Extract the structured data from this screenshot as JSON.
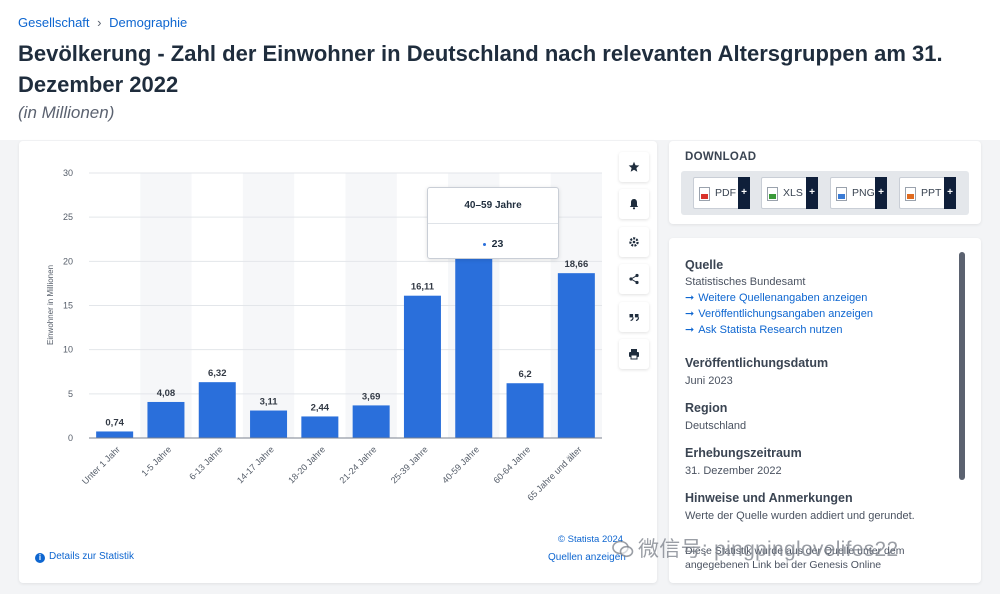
{
  "breadcrumb": {
    "item1": "Gesellschaft",
    "separator": "›",
    "item2": "Demographie"
  },
  "title": "Bevölkerung - Zahl der Einwohner in Deutschland nach relevanten Altersgruppen am 31. Dezember 2022",
  "subtitle": "(in Millionen)",
  "chart_data": {
    "type": "bar",
    "categories": [
      "Unter 1 Jahr",
      "1-5 Jahre",
      "6-13 Jahre",
      "14-17 Jahre",
      "18-20 Jahre",
      "21-24 Jahre",
      "25-39 Jahre",
      "40-59 Jahre",
      "60-64 Jahre",
      "65 Jahre und älter"
    ],
    "values": [
      0.74,
      4.08,
      6.32,
      3.11,
      2.44,
      3.69,
      16.11,
      23,
      6.2,
      18.66
    ],
    "value_labels": [
      "0,74",
      "4,08",
      "6,32",
      "3,11",
      "2,44",
      "3,69",
      "16,11",
      "",
      "6,2",
      "18,66"
    ],
    "ylabel": "Einwohner in Millionen",
    "ylim": [
      0,
      30
    ],
    "yticks": [
      "0",
      "5",
      "10",
      "15",
      "20",
      "25",
      "30"
    ],
    "bar_color": "#2a6fdb",
    "grid": true,
    "tooltip": {
      "title": "40–59 Jahre",
      "value": "23"
    }
  },
  "chart_footer": {
    "details_label": "Details zur Statistik",
    "copyright": "© Statista 2024",
    "sources_label": "Quellen anzeigen"
  },
  "tools": [
    "star-icon",
    "bell-icon",
    "gear-icon",
    "share-icon",
    "quote-icon",
    "print-icon"
  ],
  "download": {
    "title": "DOWNLOAD",
    "buttons": [
      {
        "label": "PDF",
        "color": "#d9322b"
      },
      {
        "label": "XLS",
        "color": "#3a9a3a"
      },
      {
        "label": "PNG",
        "color": "#3a7bd5"
      },
      {
        "label": "PPT",
        "color": "#e06b1f"
      }
    ],
    "plus": "+"
  },
  "info": {
    "quelle_head": "Quelle",
    "quelle_text": "Statistisches Bundesamt",
    "links": [
      "Weitere Quellenangaben anzeigen",
      "Veröffentlichungsangaben anzeigen",
      "Ask Statista Research nutzen"
    ],
    "pub_head": "Veröffentlichungsdatum",
    "pub_text": "Juni 2023",
    "region_head": "Region",
    "region_text": "Deutschland",
    "survey_head": "Erhebungszeitraum",
    "survey_text": "31. Dezember 2022",
    "notes_head": "Hinweise und Anmerkungen",
    "notes_text": "Werte der Quelle wurden addiert und gerundet.",
    "cutoff_text": "Diese Statistik wurde aus der Quelle unter dem angegebenen Link bei der Genesis Online"
  },
  "watermark": "微信号: pingpinglovelifes22"
}
